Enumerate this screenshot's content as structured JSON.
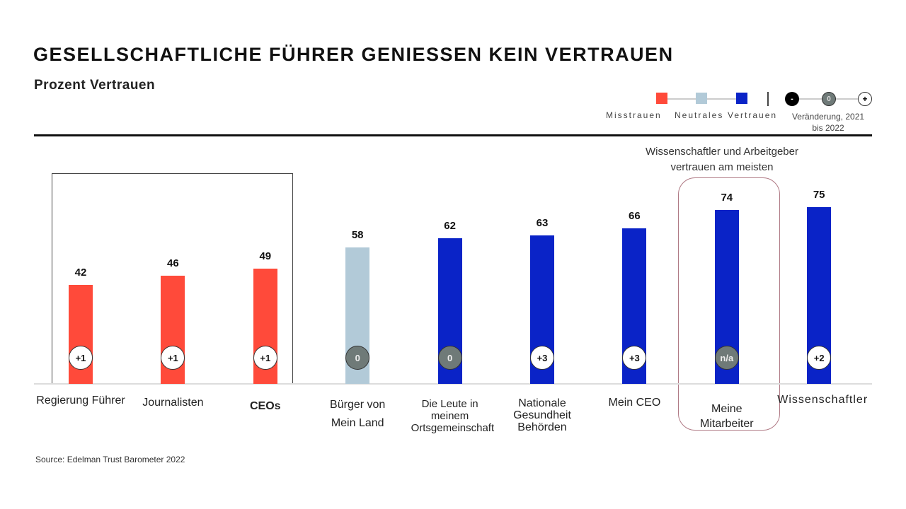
{
  "chart_data": {
    "type": "bar",
    "title": "GESELLSCHAFTLICHE FÜHRER GENIESSEN KEIN VERTRAUEN",
    "subtitle": "Prozent Vertrauen",
    "categories": [
      "Regierung Führer",
      "Journalisten",
      "CEOs",
      "Bürger von Mein Land",
      "Die Leute in meinem Ortsgemeinschaft",
      "Nationale Gesundheit Behörden",
      "Mein CEO",
      "Meine Mitarbeiter",
      "Wissenschaftler"
    ],
    "values": [
      42,
      46,
      49,
      58,
      62,
      63,
      66,
      74,
      75
    ],
    "trust_level": [
      "Misstrauen",
      "Misstrauen",
      "Misstrauen",
      "Neutrales",
      "Vertrauen",
      "Vertrauen",
      "Vertrauen",
      "Vertrauen",
      "Vertrauen"
    ],
    "change": [
      "+1",
      "+1",
      "+1",
      "0",
      "0",
      "+3",
      "+3",
      "n/a",
      "+2"
    ],
    "legend": {
      "items": [
        {
          "label": "Misstrauen",
          "color": "#ff4a3a"
        },
        {
          "label": "Neutrales",
          "color": "#b2cad8"
        },
        {
          "label": "Vertrauen",
          "color": "#0a23c7"
        }
      ],
      "change_label": "Veränderung, 2021 bis 2022",
      "change_symbols": [
        "-",
        "0",
        "+"
      ],
      "placement": "top-right"
    },
    "annotation": "Wissenschaftler und Arbeitgeber vertrauen am meisten",
    "ylim": [
      0,
      100
    ],
    "grid": false
  },
  "source": "Source: Edelman Trust Barometer 2022"
}
